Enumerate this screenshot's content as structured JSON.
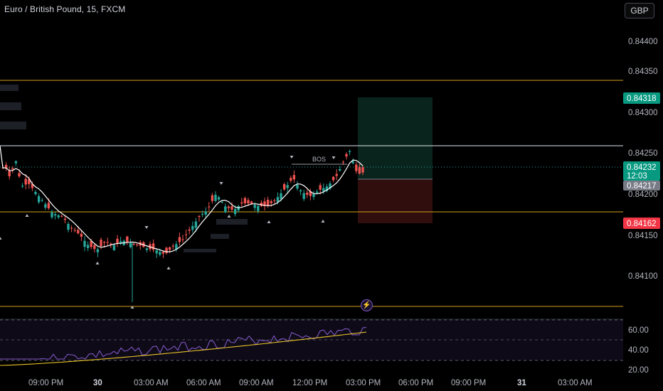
{
  "header": {
    "title": "Euro / British Pound, 15, FXCM",
    "currency_button": "GBP"
  },
  "price_axis": {
    "ticks": [
      "0.84400",
      "0.84350",
      "0.84300",
      "0.84250",
      "0.84200",
      "0.84150",
      "0.84100"
    ]
  },
  "badges": {
    "take_profit": "0.84318",
    "last_price": "0.84232",
    "countdown": "12:03",
    "entry": "0.84217",
    "stop_loss": "0.84162"
  },
  "annotations": {
    "bos_label": "BOS"
  },
  "rsi_axis": {
    "ticks": [
      "60.00",
      "40.00",
      "20.00"
    ]
  },
  "time_axis": {
    "labels": [
      "09:00 PM",
      "30",
      "03:00 AM",
      "06:00 AM",
      "09:00 AM",
      "12:00 PM",
      "03:00 PM",
      "06:00 PM",
      "09:00 PM",
      "31",
      "03:00 AM"
    ]
  },
  "colors": {
    "bull": "#26a69a",
    "bear": "#ef5350",
    "level_line": "#d4a017",
    "white_line": "#e0e3eb",
    "tp_badge": "#089981",
    "sl_badge": "#f23645",
    "rsi_line": "#7e57c2",
    "rsi_ma": "#e8c32a"
  },
  "icons": {
    "alert": "lightning-icon"
  }
}
